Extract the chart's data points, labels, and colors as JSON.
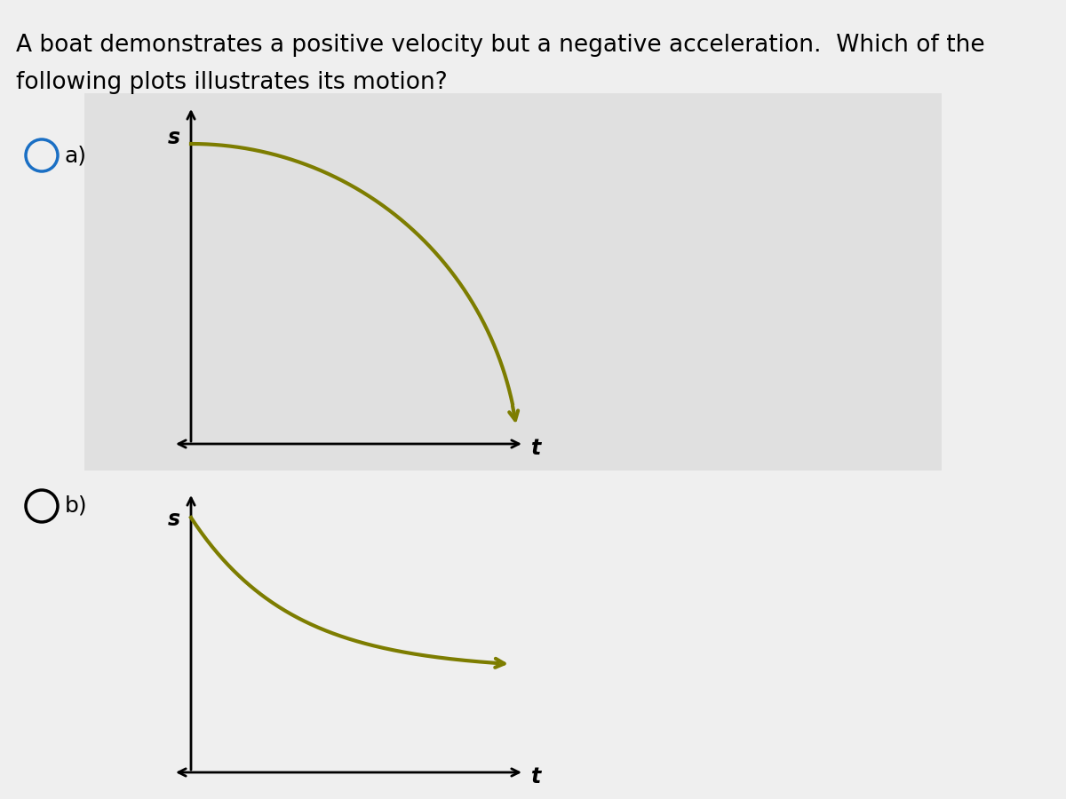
{
  "question_line1": "A boat demonstrates a positive velocity but a negative acceleration.  Which of the",
  "question_line2": "following plots illustrates its motion?",
  "text_fontsize": 19,
  "page_bg": "#efefef",
  "box_a_color": "#e0e0e0",
  "curve_color": "#7d7d00",
  "curve_lw": 3.0,
  "axis_lw": 2.0,
  "label_a": "a)",
  "label_b": "b)",
  "s_label": "s",
  "t_label": "t",
  "label_fontsize": 18,
  "axis_label_fontsize": 17,
  "radio_lw": 2.0
}
